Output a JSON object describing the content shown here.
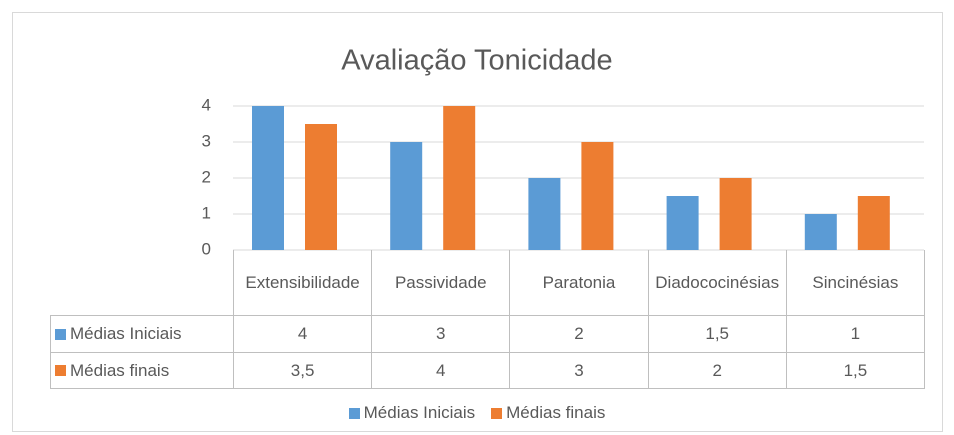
{
  "chart_data": {
    "type": "bar",
    "title": "Avaliação Tonicidade",
    "categories": [
      "Extensibilidade",
      "Passividade",
      "Paratonia",
      "Diadococinésias",
      "Sincinésias"
    ],
    "series": [
      {
        "name": "Médias Iniciais",
        "color": "#5b9bd5",
        "values": [
          4,
          3,
          2,
          1.5,
          1
        ],
        "value_labels": [
          "4",
          "3",
          "2",
          "1,5",
          "1"
        ]
      },
      {
        "name": "Médias finais",
        "color": "#ed7d31",
        "values": [
          3.5,
          4,
          3,
          2,
          1.5
        ],
        "value_labels": [
          "3,5",
          "4",
          "3",
          "2",
          "1,5"
        ]
      }
    ],
    "ylim": [
      0,
      4
    ],
    "yticks": [
      0,
      1,
      2,
      3,
      4
    ],
    "grid": true,
    "legend": "bottom"
  }
}
